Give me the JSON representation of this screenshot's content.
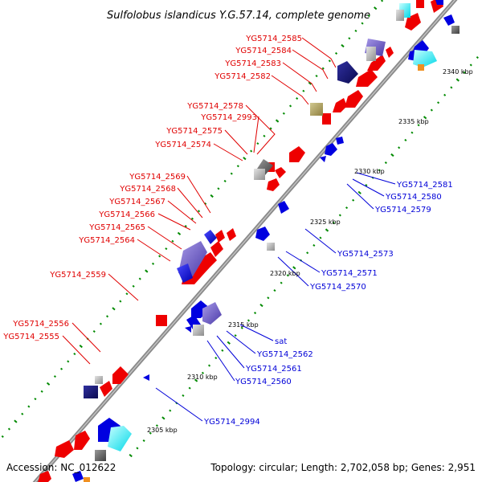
{
  "title": "Sulfolobus islandicus Y.G.57.14, complete genome",
  "accession": "Accession: NC_012622",
  "summary": "Topology: circular; Length: 2,702,058 bp; Genes: 2,951",
  "ticks": [
    "2340 kbp",
    "2335 kbp",
    "2330 kbp",
    "2325 kbp",
    "2320 kbp",
    "2315 kbp",
    "2310 kbp",
    "2305 kbp"
  ],
  "labels_upper": [
    "YG5714_2585",
    "YG5714_2584",
    "YG5714_2583",
    "YG5714_2582",
    "YG5714_2578",
    "YG5714_2993",
    "YG5714_2575",
    "YG5714_2574",
    "YG5714_2569",
    "YG5714_2568",
    "YG5714_2567",
    "YG5714_2566",
    "YG5714_2565",
    "YG5714_2564",
    "YG5714_2559",
    "YG5714_2556",
    "YG5714_2555"
  ],
  "labels_lower": [
    "YG5714_2581",
    "YG5714_2580",
    "YG5714_2579",
    "YG5714_2573",
    "YG5714_2571",
    "YG5714_2570",
    "sat",
    "YG5714_2562",
    "YG5714_2561",
    "YG5714_2560",
    "YG5714_2994"
  ],
  "colors": {
    "forward": "#ee0000",
    "reverse": "#0000e0",
    "backbone": "#8a8a8a",
    "label_forward": "#e00000",
    "label_reverse": "#0000d8",
    "tick_dots": "#008a00"
  }
}
